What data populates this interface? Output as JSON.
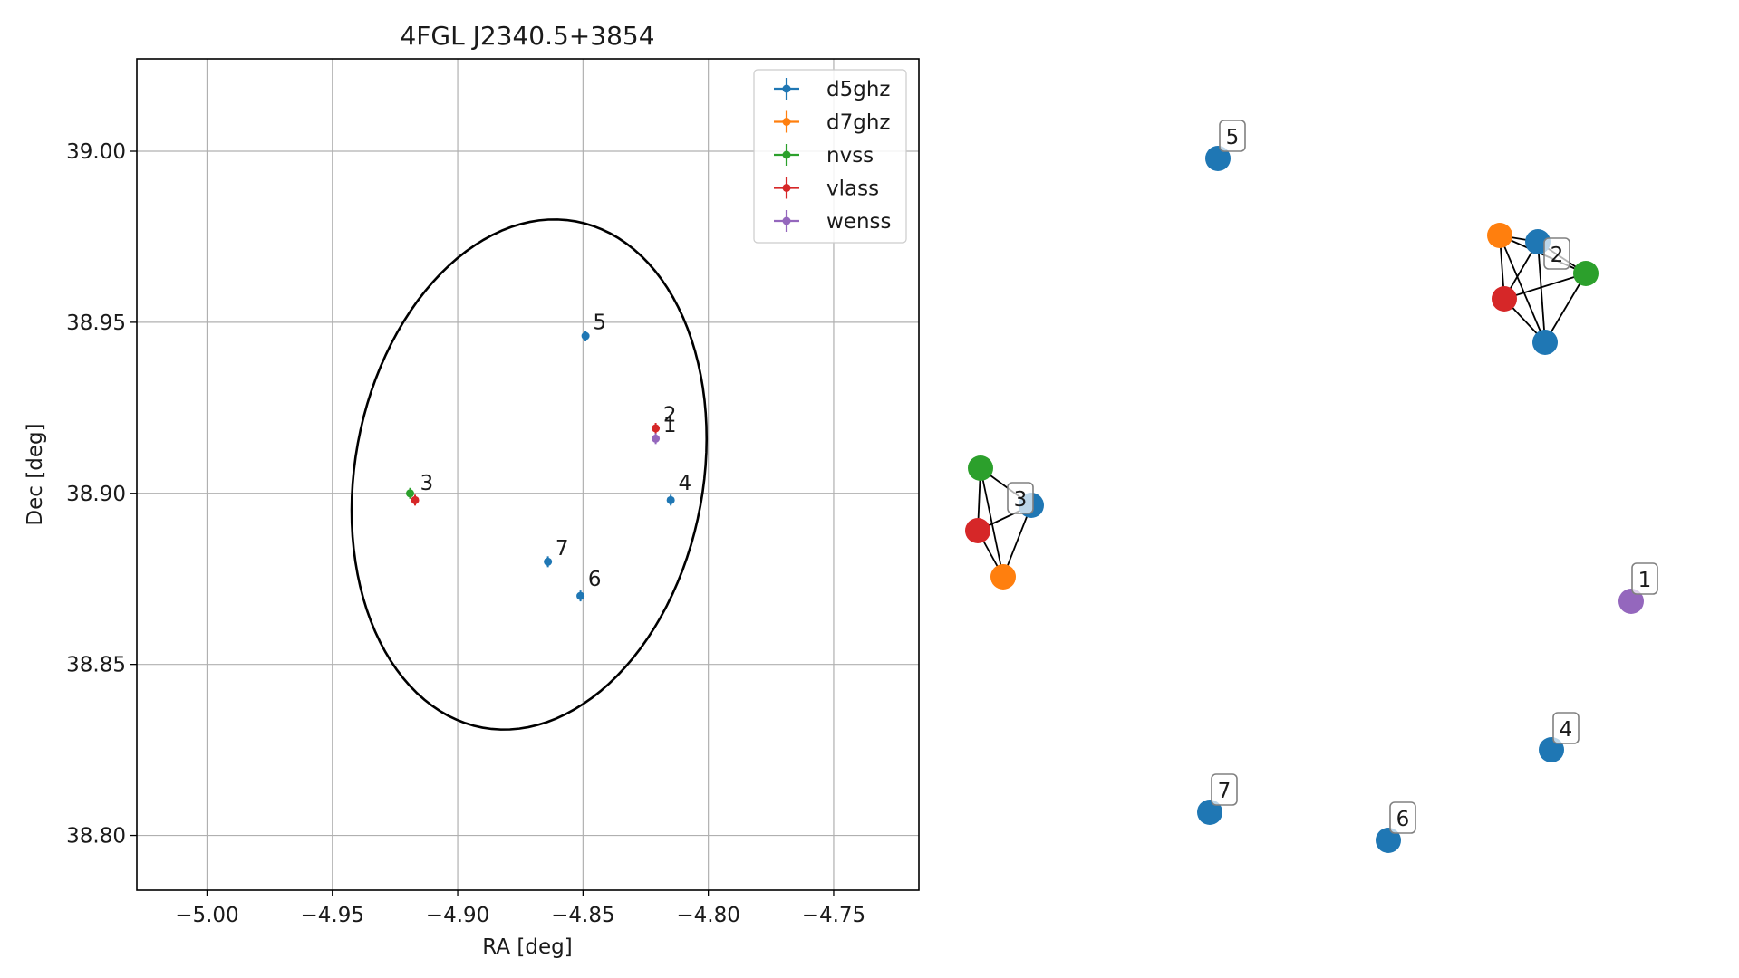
{
  "chart_data": [
    {
      "type": "scatter",
      "title": "4FGL J2340.5+3854",
      "xlabel": "RA [deg]",
      "ylabel": "Dec [deg]",
      "xlim": [
        -5.028,
        -4.716
      ],
      "ylim": [
        38.784,
        39.027
      ],
      "xticks": [
        -5.0,
        -4.95,
        -4.9,
        -4.85,
        -4.8,
        -4.75
      ],
      "xtick_labels": [
        "−5.00",
        "−4.95",
        "−4.90",
        "−4.85",
        "−4.80",
        "−4.75"
      ],
      "yticks": [
        38.8,
        38.85,
        38.9,
        38.95,
        39.0
      ],
      "ytick_labels": [
        "38.80",
        "38.85",
        "38.90",
        "38.95",
        "39.00"
      ],
      "grid": true,
      "legend": "top-right",
      "legend_entries": [
        "d5ghz",
        "d7ghz",
        "nvss",
        "vlass",
        "wenss"
      ],
      "series": [
        {
          "name": "d5ghz",
          "color": "#1f77b4",
          "points": [
            {
              "x": -4.849,
              "y": 38.946
            },
            {
              "x": -4.815,
              "y": 38.898
            },
            {
              "x": -4.851,
              "y": 38.87
            },
            {
              "x": -4.864,
              "y": 38.88
            }
          ]
        },
        {
          "name": "d7ghz",
          "color": "#ff7f0e",
          "points": []
        },
        {
          "name": "nvss",
          "color": "#2ca02c",
          "points": [
            {
              "x": -4.919,
              "y": 38.9
            }
          ]
        },
        {
          "name": "vlass",
          "color": "#d62728",
          "points": [
            {
              "x": -4.821,
              "y": 38.919
            },
            {
              "x": -4.917,
              "y": 38.898
            }
          ]
        },
        {
          "name": "wenss",
          "color": "#9467bd",
          "points": [
            {
              "x": -4.821,
              "y": 38.916
            }
          ]
        }
      ],
      "annotations": [
        {
          "text": "1",
          "x": -4.818,
          "y": 38.918
        },
        {
          "text": "2",
          "x": -4.818,
          "y": 38.921
        },
        {
          "text": "3",
          "x": -4.915,
          "y": 38.901
        },
        {
          "text": "4",
          "x": -4.812,
          "y": 38.901
        },
        {
          "text": "5",
          "x": -4.846,
          "y": 38.948
        },
        {
          "text": "6",
          "x": -4.848,
          "y": 38.873
        },
        {
          "text": "7",
          "x": -4.861,
          "y": 38.882
        }
      ],
      "ellipse": {
        "center": [
          -4.8715,
          38.9055
        ],
        "semi_major": 0.078,
        "semi_minor": 0.067,
        "angle_deg": 55,
        "color": "#000000"
      }
    },
    {
      "type": "network",
      "title": "",
      "colors": {
        "d5ghz": "#1f77b4",
        "d7ghz": "#ff7f0e",
        "nvss": "#2ca02c",
        "vlass": "#d62728",
        "wenss": "#9467bd"
      },
      "nodes": [
        {
          "id": "c2-blue-a",
          "series": "d5ghz"
        },
        {
          "id": "c2-blue-b",
          "series": "d5ghz"
        },
        {
          "id": "c2-orange",
          "series": "d7ghz"
        },
        {
          "id": "c2-green",
          "series": "nvss"
        },
        {
          "id": "c2-red",
          "series": "vlass"
        },
        {
          "id": "c3-blue",
          "series": "d5ghz"
        },
        {
          "id": "c3-green",
          "series": "nvss"
        },
        {
          "id": "c3-red",
          "series": "vlass"
        },
        {
          "id": "c3-orange",
          "series": "d7ghz"
        },
        {
          "id": "n1",
          "series": "wenss"
        },
        {
          "id": "n4",
          "series": "d5ghz"
        },
        {
          "id": "n5",
          "series": "d5ghz"
        },
        {
          "id": "n6",
          "series": "d5ghz"
        },
        {
          "id": "n7",
          "series": "d5ghz"
        }
      ],
      "edges": [
        [
          "c2-orange",
          "c2-blue-a"
        ],
        [
          "c2-orange",
          "c2-green"
        ],
        [
          "c2-orange",
          "c2-red"
        ],
        [
          "c2-orange",
          "c2-blue-b"
        ],
        [
          "c2-blue-a",
          "c2-green"
        ],
        [
          "c2-blue-a",
          "c2-red"
        ],
        [
          "c2-blue-a",
          "c2-blue-b"
        ],
        [
          "c2-red",
          "c2-green"
        ],
        [
          "c2-red",
          "c2-blue-b"
        ],
        [
          "c2-green",
          "c2-blue-b"
        ],
        [
          "c3-green",
          "c3-blue"
        ],
        [
          "c3-green",
          "c3-red"
        ],
        [
          "c3-green",
          "c3-orange"
        ],
        [
          "c3-red",
          "c3-blue"
        ],
        [
          "c3-red",
          "c3-orange"
        ],
        [
          "c3-blue",
          "c3-orange"
        ]
      ],
      "labels": [
        "1",
        "2",
        "3",
        "4",
        "5",
        "6",
        "7"
      ]
    }
  ]
}
